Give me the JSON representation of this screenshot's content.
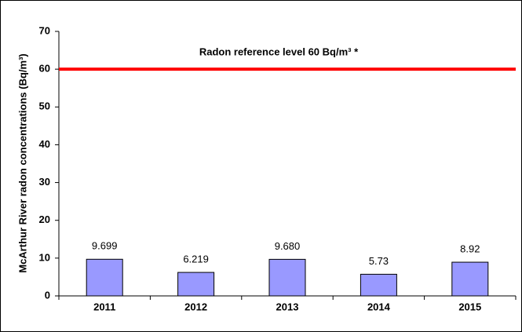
{
  "chart_data": {
    "type": "bar",
    "y_label": "McArthur River radon concentrations (Bq/m³)",
    "categories": [
      "2011",
      "2012",
      "2013",
      "2014",
      "2015"
    ],
    "values": [
      9.699,
      6.219,
      9.68,
      5.73,
      8.92
    ],
    "value_labels": [
      "9.699",
      "6.219",
      "9.680",
      "5.73",
      "8.92"
    ],
    "color": "#9999ff",
    "ylim": [
      0,
      70
    ],
    "yticks": [
      0,
      10,
      20,
      30,
      40,
      50,
      60,
      70
    ],
    "reference_line": {
      "value": 60,
      "color": "#ff0000",
      "label": "Radon reference level 60 Bq/m³ *"
    }
  }
}
